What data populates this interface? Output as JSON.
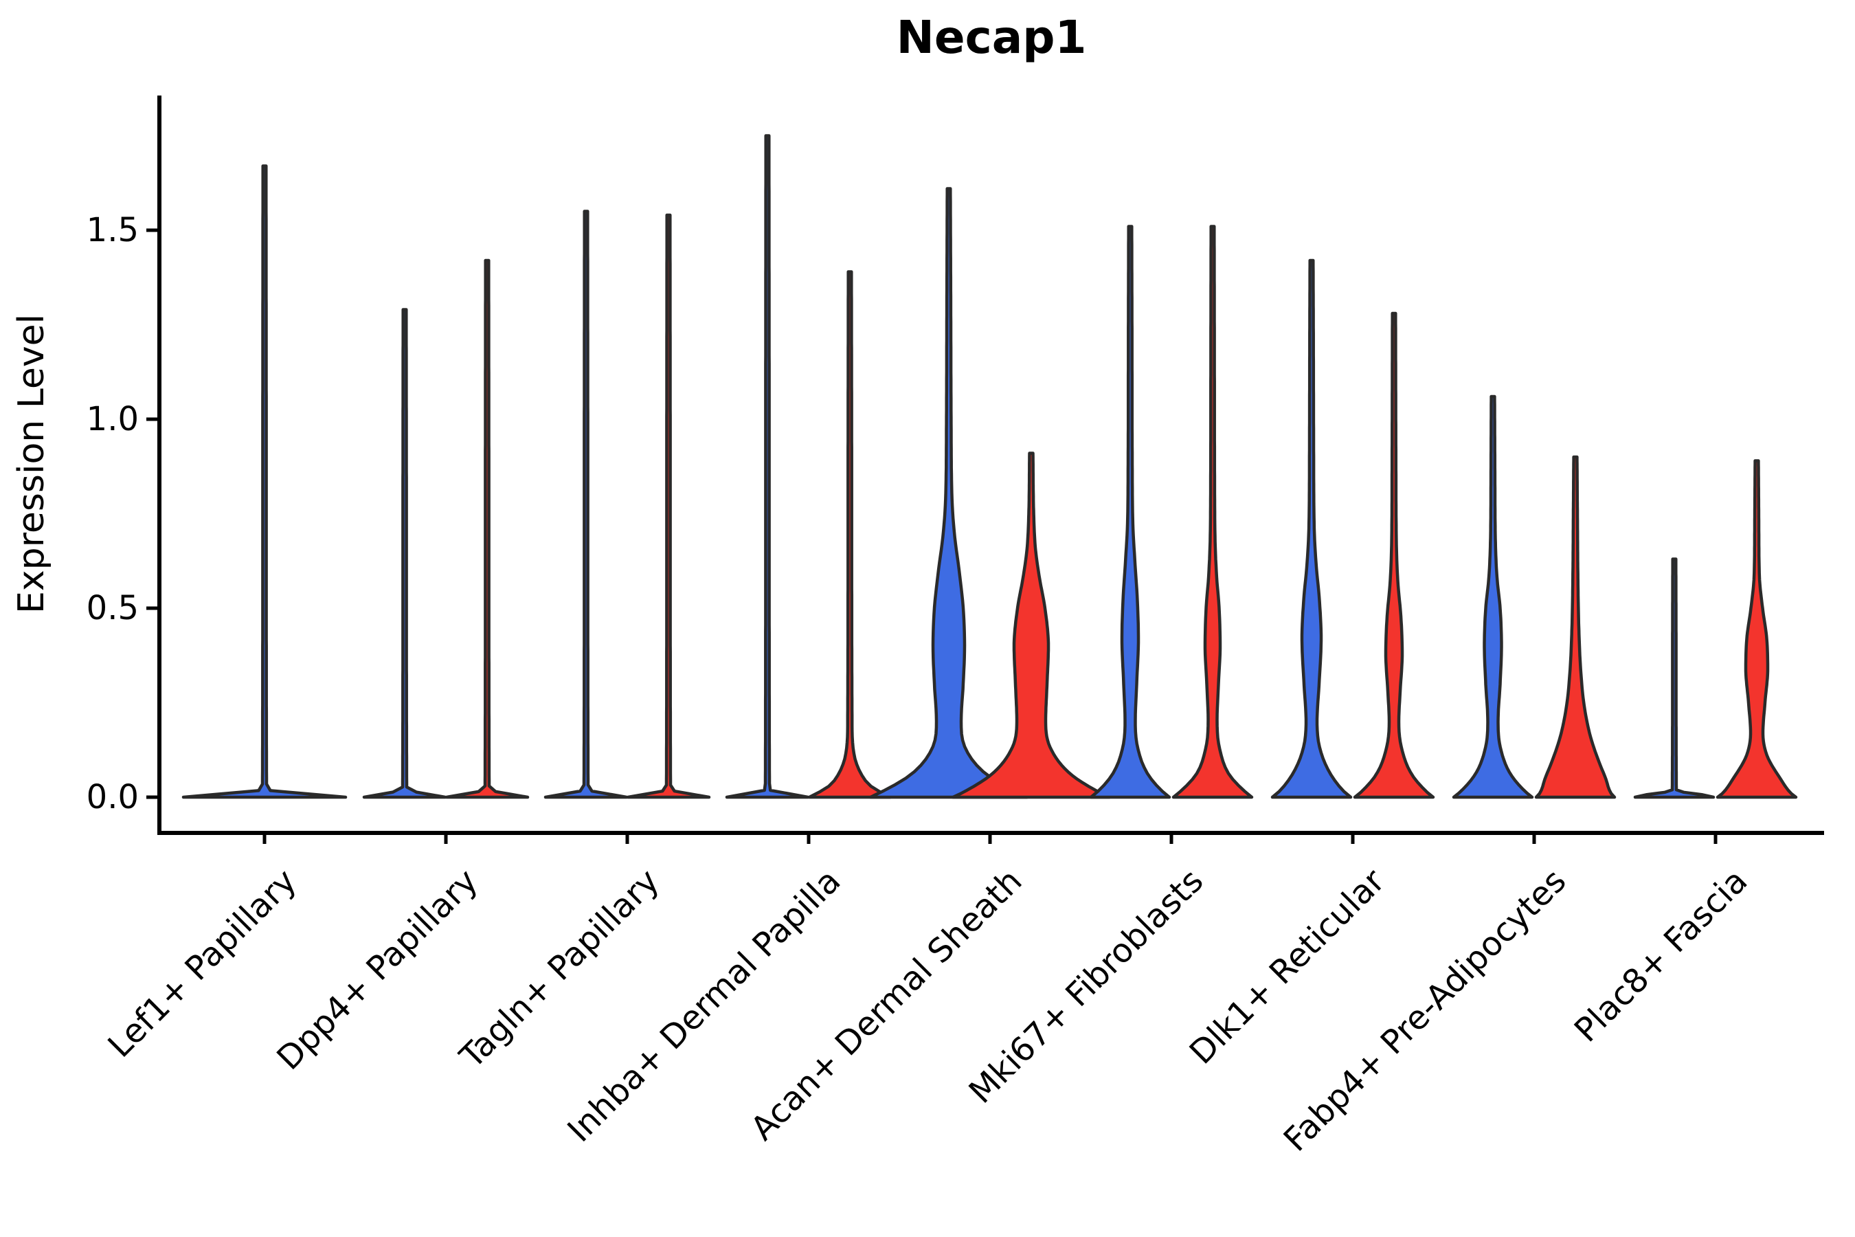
{
  "title": "Necap1",
  "ylabel": "Expression Level",
  "colors": {
    "blue": "#3E6CE3",
    "red": "#F3342D",
    "outline": "#2A2A2A",
    "axis": "#000000",
    "background": "#FFFFFF"
  },
  "y_axis": {
    "ticks": [
      {
        "value": 0.0,
        "label": "0.0"
      },
      {
        "value": 0.5,
        "label": "0.5"
      },
      {
        "value": 1.0,
        "label": "1.0"
      },
      {
        "value": 1.5,
        "label": "1.5"
      }
    ],
    "limit_max": 1.86
  },
  "chart_data": {
    "type": "violin",
    "title": "Necap1",
    "xlabel": "",
    "ylabel": "Expression Level",
    "ylim": [
      0,
      1.86
    ],
    "yticks": [
      0.0,
      0.5,
      1.0,
      1.5
    ],
    "grid": false,
    "legend": "none",
    "split_groups": [
      "blue",
      "red"
    ],
    "categories": [
      "Lef1+ Papillary",
      "Dpp4+ Papillary",
      "Tagln+ Papillary",
      "Inhba+ Dermal Papilla",
      "Acan+ Dermal Sheath",
      "Mki67+ Fibroblasts",
      "Dlk1+ Reticular",
      "Fabp4+ Pre-Adipocytes",
      "Plac8+ Fascia"
    ],
    "violins": [
      {
        "category": "Lef1+ Papillary",
        "parts": [
          {
            "group": "blue",
            "side": "full",
            "max": 1.67,
            "profile": [
              [
                0,
                118
              ],
              [
                0.005,
                96
              ],
              [
                0.02,
                3
              ],
              [
                0.8,
                2.6
              ],
              [
                1.67,
                2.3
              ]
            ]
          }
        ]
      },
      {
        "category": "Dpp4+ Papillary",
        "parts": [
          {
            "group": "blue",
            "side": "left",
            "max": 1.29,
            "profile": [
              [
                0,
                59
              ],
              [
                0.005,
                48
              ],
              [
                0.02,
                3
              ],
              [
                0.65,
                2.6
              ],
              [
                1.29,
                2.3
              ]
            ]
          },
          {
            "group": "red",
            "side": "right",
            "max": 1.42,
            "profile": [
              [
                0,
                59
              ],
              [
                0.005,
                48
              ],
              [
                0.02,
                3
              ],
              [
                0.7,
                2.6
              ],
              [
                1.42,
                2.3
              ]
            ]
          }
        ]
      },
      {
        "category": "Tagln+ Papillary",
        "parts": [
          {
            "group": "blue",
            "side": "left",
            "max": 1.55,
            "profile": [
              [
                0,
                59
              ],
              [
                0.005,
                48
              ],
              [
                0.02,
                3
              ],
              [
                0.78,
                2.6
              ],
              [
                1.55,
                2.3
              ]
            ]
          },
          {
            "group": "red",
            "side": "right",
            "max": 1.54,
            "profile": [
              [
                0,
                59
              ],
              [
                0.005,
                48
              ],
              [
                0.02,
                3
              ],
              [
                0.77,
                2.6
              ],
              [
                1.54,
                2.3
              ]
            ]
          }
        ]
      },
      {
        "category": "Inhba+ Dermal Papilla",
        "parts": [
          {
            "group": "blue",
            "side": "left",
            "max": 1.75,
            "profile": [
              [
                0,
                59
              ],
              [
                0.005,
                48
              ],
              [
                0.02,
                3
              ],
              [
                0.88,
                2.6
              ],
              [
                1.75,
                2.3
              ]
            ]
          },
          {
            "group": "red",
            "side": "right",
            "max": 1.39,
            "profile": [
              [
                0,
                59
              ],
              [
                0.008,
                50
              ],
              [
                0.03,
                30
              ],
              [
                0.07,
                14
              ],
              [
                0.12,
                5.5
              ],
              [
                0.2,
                3.2
              ],
              [
                0.8,
                2.7
              ],
              [
                1.39,
                2.3
              ]
            ]
          }
        ]
      },
      {
        "category": "Acan+ Dermal Sheath",
        "parts": [
          {
            "group": "blue",
            "side": "left",
            "max": 1.61,
            "profile": [
              [
                0,
                114
              ],
              [
                0.012,
                100
              ],
              [
                0.06,
                55
              ],
              [
                0.13,
                24
              ],
              [
                0.2,
                18
              ],
              [
                0.3,
                21
              ],
              [
                0.4,
                23
              ],
              [
                0.5,
                21
              ],
              [
                0.6,
                15
              ],
              [
                0.7,
                8
              ],
              [
                0.8,
                4.5
              ],
              [
                1.0,
                3.4
              ],
              [
                1.3,
                2.9
              ],
              [
                1.61,
                2.3
              ]
            ]
          },
          {
            "group": "red",
            "side": "right",
            "max": 0.91,
            "profile": [
              [
                0,
                114
              ],
              [
                0.012,
                100
              ],
              [
                0.06,
                58
              ],
              [
                0.13,
                28
              ],
              [
                0.2,
                21
              ],
              [
                0.3,
                23
              ],
              [
                0.4,
                25
              ],
              [
                0.5,
                20
              ],
              [
                0.58,
                12
              ],
              [
                0.66,
                6
              ],
              [
                0.75,
                3.6
              ],
              [
                0.91,
                2.5
              ]
            ]
          }
        ]
      },
      {
        "category": "Mki67+ Fibroblasts",
        "parts": [
          {
            "group": "blue",
            "side": "left",
            "max": 1.51,
            "profile": [
              [
                0,
                57
              ],
              [
                0.01,
                50
              ],
              [
                0.06,
                26
              ],
              [
                0.13,
                11
              ],
              [
                0.2,
                7.5
              ],
              [
                0.3,
                9.5
              ],
              [
                0.42,
                12
              ],
              [
                0.52,
                10.5
              ],
              [
                0.62,
                7
              ],
              [
                0.72,
                4
              ],
              [
                0.9,
                3
              ],
              [
                1.2,
                2.7
              ],
              [
                1.51,
                2.3
              ]
            ]
          },
          {
            "group": "red",
            "side": "right",
            "max": 1.51,
            "profile": [
              [
                0,
                57
              ],
              [
                0.01,
                50
              ],
              [
                0.06,
                24
              ],
              [
                0.13,
                10
              ],
              [
                0.2,
                6.5
              ],
              [
                0.3,
                8.5
              ],
              [
                0.4,
                11
              ],
              [
                0.5,
                9.5
              ],
              [
                0.58,
                6
              ],
              [
                0.68,
                3.6
              ],
              [
                0.9,
                2.8
              ],
              [
                1.2,
                2.6
              ],
              [
                1.51,
                2.3
              ]
            ]
          }
        ]
      },
      {
        "category": "Dlk1+ Reticular",
        "parts": [
          {
            "group": "blue",
            "side": "left",
            "max": 1.42,
            "profile": [
              [
                0,
                57
              ],
              [
                0.01,
                50
              ],
              [
                0.06,
                28
              ],
              [
                0.13,
                12
              ],
              [
                0.2,
                8
              ],
              [
                0.3,
                11
              ],
              [
                0.42,
                14
              ],
              [
                0.52,
                11.5
              ],
              [
                0.62,
                6.5
              ],
              [
                0.72,
                3.8
              ],
              [
                0.95,
                3
              ],
              [
                1.2,
                2.7
              ],
              [
                1.42,
                2.3
              ]
            ]
          },
          {
            "group": "red",
            "side": "right",
            "max": 1.28,
            "profile": [
              [
                0,
                57
              ],
              [
                0.01,
                50
              ],
              [
                0.06,
                26
              ],
              [
                0.13,
                11
              ],
              [
                0.2,
                7
              ],
              [
                0.28,
                9
              ],
              [
                0.38,
                12
              ],
              [
                0.48,
                10
              ],
              [
                0.56,
                6
              ],
              [
                0.66,
                3.6
              ],
              [
                0.9,
                2.8
              ],
              [
                1.28,
                2.3
              ]
            ]
          }
        ]
      },
      {
        "category": "Fabp4+ Pre-Adipocytes",
        "parts": [
          {
            "group": "blue",
            "side": "left",
            "max": 1.06,
            "profile": [
              [
                0,
                57
              ],
              [
                0.01,
                50
              ],
              [
                0.06,
                26
              ],
              [
                0.13,
                11
              ],
              [
                0.2,
                7.5
              ],
              [
                0.3,
                10.5
              ],
              [
                0.4,
                12.5
              ],
              [
                0.5,
                10.5
              ],
              [
                0.58,
                6
              ],
              [
                0.68,
                3.6
              ],
              [
                0.85,
                2.9
              ],
              [
                1.06,
                2.4
              ]
            ]
          },
          {
            "group": "red",
            "side": "right",
            "max": 0.9,
            "profile": [
              [
                0,
                57
              ],
              [
                0.01,
                52
              ],
              [
                0.05,
                44
              ],
              [
                0.1,
                33
              ],
              [
                0.16,
                22
              ],
              [
                0.24,
                13
              ],
              [
                0.33,
                8
              ],
              [
                0.45,
                5
              ],
              [
                0.6,
                3.6
              ],
              [
                0.75,
                3
              ],
              [
                0.9,
                2.4
              ]
            ]
          }
        ]
      },
      {
        "category": "Plac8+ Fascia",
        "parts": [
          {
            "group": "blue",
            "side": "left",
            "max": 0.63,
            "profile": [
              [
                0,
                57
              ],
              [
                0.005,
                46
              ],
              [
                0.018,
                3
              ],
              [
                0.35,
                2.6
              ],
              [
                0.63,
                2.3
              ]
            ]
          },
          {
            "group": "red",
            "side": "right",
            "max": 0.89,
            "profile": [
              [
                0,
                57
              ],
              [
                0.01,
                50
              ],
              [
                0.05,
                34
              ],
              [
                0.11,
                15
              ],
              [
                0.17,
                9
              ],
              [
                0.25,
                12
              ],
              [
                0.34,
                16
              ],
              [
                0.42,
                14.5
              ],
              [
                0.5,
                8.5
              ],
              [
                0.58,
                4
              ],
              [
                0.72,
                3
              ],
              [
                0.89,
                2.4
              ]
            ]
          }
        ]
      }
    ]
  }
}
